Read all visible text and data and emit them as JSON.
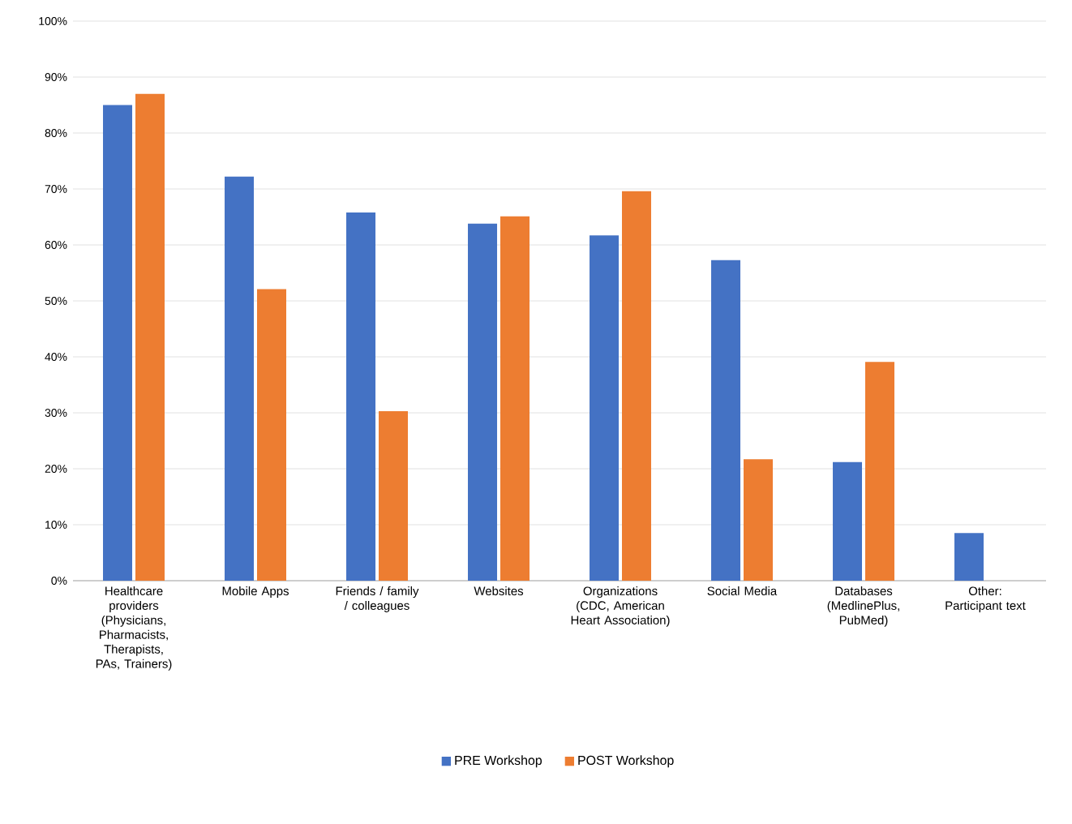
{
  "chart_data": {
    "type": "bar",
    "categories": [
      "Healthcare providers (Physicians, Pharmacists, Therapists, PAs, Trainers)",
      "Mobile Apps",
      "Friends / family / colleagues",
      "Websites",
      "Organizations (CDC, American Heart Association)",
      "Social Media",
      "Databases (MedlinePlus, PubMed)",
      "Other: Participant text"
    ],
    "series": [
      {
        "name": "PRE Workshop",
        "color": "#4472c4",
        "values": [
          85,
          72.2,
          65.8,
          63.8,
          61.7,
          57.3,
          21.2,
          8.5
        ]
      },
      {
        "name": "POST Workshop",
        "color": "#ed7d31",
        "values": [
          87,
          52.1,
          30.3,
          65.1,
          69.6,
          21.7,
          39.1,
          null
        ]
      }
    ],
    "ylim": [
      0,
      100
    ],
    "yticks": [
      {
        "value": 0,
        "label": "0%"
      },
      {
        "value": 10,
        "label": "10%"
      },
      {
        "value": 20,
        "label": "20%"
      },
      {
        "value": 30,
        "label": "30%"
      },
      {
        "value": 40,
        "label": "40%"
      },
      {
        "value": 50,
        "label": "50%"
      },
      {
        "value": 60,
        "label": "60%"
      },
      {
        "value": 70,
        "label": "70%"
      },
      {
        "value": 80,
        "label": "80%"
      },
      {
        "value": 90,
        "label": "90%"
      },
      {
        "value": 100,
        "label": "100%"
      }
    ],
    "grid": "y",
    "legend": "bottom"
  }
}
